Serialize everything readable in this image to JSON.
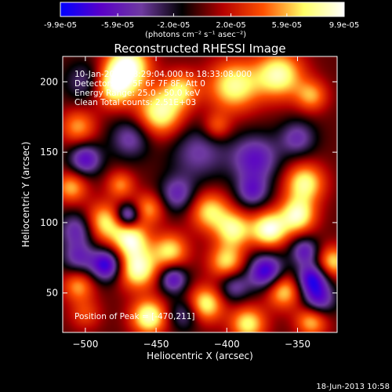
{
  "colorbar": {
    "tick_labels": [
      "-9.9e-05",
      "-5.9e-05",
      "-2.0e-05",
      "2.0e-05",
      "5.9e-05",
      "9.9e-05"
    ],
    "tick_values": [
      -9.9e-05,
      -5.9e-05,
      -2e-05,
      2e-05,
      5.9e-05,
      9.9e-05
    ],
    "range": [
      -9.9e-05,
      9.9e-05
    ],
    "units_text": "(photons cm⁻² s⁻¹ asec⁻²)",
    "colors": [
      "#0000ff",
      "#5a00c8",
      "#6e3aa0",
      "#000000",
      "#b40000",
      "#ff5000",
      "#ffff66",
      "#ffffff"
    ]
  },
  "chart_data": {
    "type": "heatmap",
    "title": "Reconstructed RHESSI Image",
    "xlabel": "Heliocentric X (arcsec)",
    "ylabel": "Heliocentric Y (arcsec)",
    "xlim": [
      -516,
      -322
    ],
    "ylim": [
      22,
      218
    ],
    "x_ticks": [
      -500,
      -450,
      -400,
      -350
    ],
    "y_ticks": [
      50,
      100,
      150,
      200
    ],
    "annotations": [
      "10-Jan-2004 18:29:04.000 to 18:33:08.000",
      "Detectors: 4F 5F 6F 7F 8F, Att 0",
      "Energy Range: 25.0 - 50.0 keV",
      "Clean    Total counts: 2.51E+03",
      "Position of Peak = [-470,211]"
    ],
    "peak": [
      -470,
      211
    ],
    "blobs": [
      {
        "x": -470,
        "y": 211,
        "v": 1.0,
        "s": 11
      },
      {
        "x": -480,
        "y": 196,
        "v": 0.8,
        "s": 10
      },
      {
        "x": -447,
        "y": 178,
        "v": 0.85,
        "s": 12
      },
      {
        "x": -432,
        "y": 195,
        "v": 0.6,
        "s": 9
      },
      {
        "x": -395,
        "y": 197,
        "v": 0.8,
        "s": 13
      },
      {
        "x": -363,
        "y": 205,
        "v": 0.85,
        "s": 12
      },
      {
        "x": -340,
        "y": 190,
        "v": 0.55,
        "s": 8
      },
      {
        "x": -407,
        "y": 168,
        "v": 0.45,
        "s": 7
      },
      {
        "x": -505,
        "y": 168,
        "v": 0.55,
        "s": 9
      },
      {
        "x": -510,
        "y": 125,
        "v": 0.6,
        "s": 8
      },
      {
        "x": -475,
        "y": 127,
        "v": 0.5,
        "s": 7
      },
      {
        "x": -455,
        "y": 110,
        "v": 0.55,
        "s": 8
      },
      {
        "x": -487,
        "y": 100,
        "v": 0.75,
        "s": 10
      },
      {
        "x": -468,
        "y": 88,
        "v": 0.85,
        "s": 9
      },
      {
        "x": -463,
        "y": 67,
        "v": 0.9,
        "s": 10
      },
      {
        "x": -440,
        "y": 80,
        "v": 0.7,
        "s": 9
      },
      {
        "x": -412,
        "y": 108,
        "v": 0.7,
        "s": 10
      },
      {
        "x": -395,
        "y": 95,
        "v": 0.75,
        "s": 9
      },
      {
        "x": -400,
        "y": 72,
        "v": 0.7,
        "s": 9
      },
      {
        "x": -370,
        "y": 95,
        "v": 0.95,
        "s": 9
      },
      {
        "x": -350,
        "y": 105,
        "v": 0.85,
        "s": 9
      },
      {
        "x": -345,
        "y": 128,
        "v": 0.8,
        "s": 10
      },
      {
        "x": -325,
        "y": 72,
        "v": 0.7,
        "s": 8
      },
      {
        "x": -360,
        "y": 52,
        "v": 0.75,
        "s": 9
      },
      {
        "x": -505,
        "y": 55,
        "v": 0.55,
        "s": 8
      },
      {
        "x": -500,
        "y": 35,
        "v": 0.35,
        "s": 8
      },
      {
        "x": -455,
        "y": 33,
        "v": 0.9,
        "s": 9
      },
      {
        "x": -415,
        "y": 42,
        "v": 0.8,
        "s": 9
      },
      {
        "x": -385,
        "y": 28,
        "v": 0.75,
        "s": 9
      },
      {
        "x": -340,
        "y": 30,
        "v": 0.65,
        "s": 8
      },
      {
        "x": -500,
        "y": 200,
        "v": -0.4,
        "s": 10
      },
      {
        "x": -468,
        "y": 160,
        "v": -0.5,
        "s": 10
      },
      {
        "x": -420,
        "y": 150,
        "v": -0.45,
        "s": 14
      },
      {
        "x": -380,
        "y": 145,
        "v": -0.65,
        "s": 12
      },
      {
        "x": -350,
        "y": 160,
        "v": -0.5,
        "s": 9
      },
      {
        "x": -500,
        "y": 145,
        "v": -0.7,
        "s": 8
      },
      {
        "x": -470,
        "y": 105,
        "v": -0.8,
        "s": 6
      },
      {
        "x": -435,
        "y": 120,
        "v": -0.55,
        "s": 9
      },
      {
        "x": -505,
        "y": 95,
        "v": -0.6,
        "s": 9
      },
      {
        "x": -438,
        "y": 60,
        "v": -0.7,
        "s": 7
      },
      {
        "x": -485,
        "y": 70,
        "v": -0.9,
        "s": 8
      },
      {
        "x": -505,
        "y": 75,
        "v": -0.5,
        "s": 8
      },
      {
        "x": -382,
        "y": 122,
        "v": -0.55,
        "s": 8
      },
      {
        "x": -372,
        "y": 65,
        "v": -0.9,
        "s": 9
      },
      {
        "x": -340,
        "y": 60,
        "v": -0.85,
        "s": 8
      },
      {
        "x": -345,
        "y": 80,
        "v": -0.6,
        "s": 7
      },
      {
        "x": -430,
        "y": 35,
        "v": -0.45,
        "s": 8
      },
      {
        "x": -335,
        "y": 45,
        "v": -0.65,
        "s": 8
      },
      {
        "x": -395,
        "y": 55,
        "v": -0.5,
        "s": 8
      }
    ]
  },
  "footer": {
    "date": "18-Jun-2013 10:58"
  }
}
